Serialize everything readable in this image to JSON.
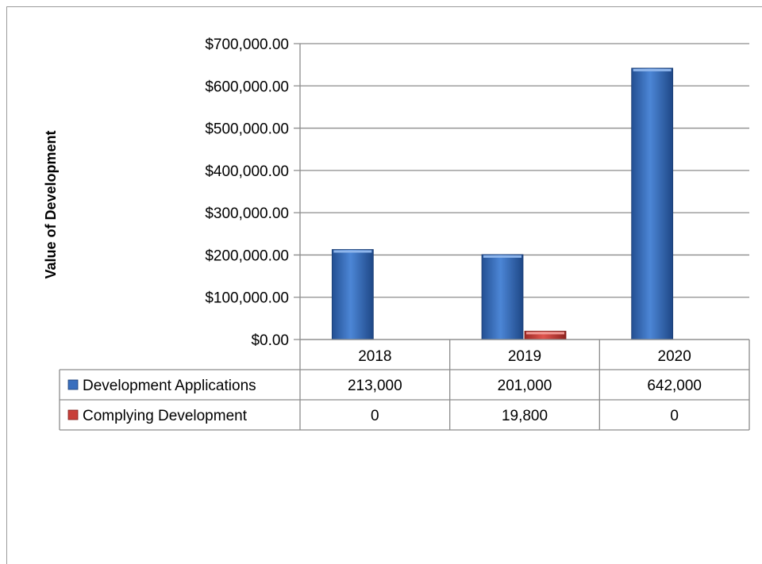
{
  "chart_data": {
    "type": "bar",
    "title": "",
    "xlabel": "",
    "ylabel": "Value of Development",
    "ylim": [
      0,
      700000
    ],
    "y_tick_step": 100000,
    "y_tick_labels": [
      "$0.00",
      "$100,000.00",
      "$200,000.00",
      "$300,000.00",
      "$400,000.00",
      "$500,000.00",
      "$600,000.00",
      "$700,000.00"
    ],
    "grid": true,
    "legend": "data-table",
    "categories": [
      "2018",
      "2019",
      "2020"
    ],
    "series": [
      {
        "name": "Development Applications",
        "values": [
          213000,
          201000,
          642000
        ],
        "labels": [
          "213,000",
          "201,000",
          "642,000"
        ],
        "color": "#3a6fbe"
      },
      {
        "name": "Complying Development",
        "values": [
          0,
          19800,
          0
        ],
        "labels": [
          "0",
          "19,800",
          "0"
        ],
        "color": "#c8403a"
      }
    ]
  }
}
